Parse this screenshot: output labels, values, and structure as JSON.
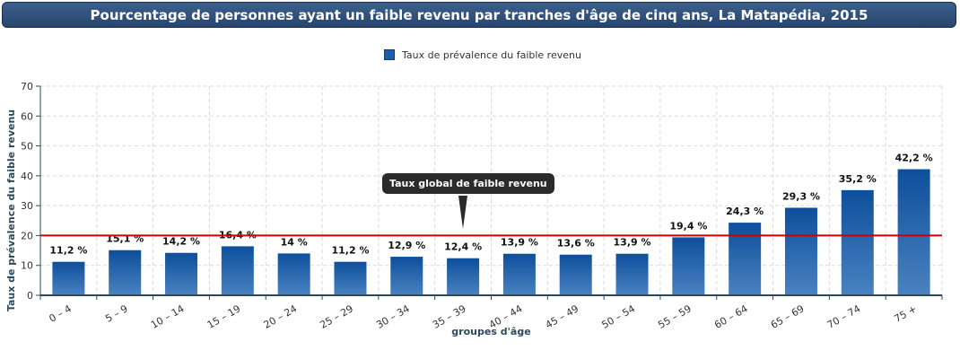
{
  "header": {
    "title": "Pourcentage de personnes ayant un faible revenu par tranches d'âge de cinq ans, La Matapédia, 2015"
  },
  "legend": {
    "series_label": "Taux de prévalence du faible revenu"
  },
  "annotation": {
    "reference_label": "Taux global de faible revenu"
  },
  "colors": {
    "bar_top": "#0d4f9c",
    "bar_bottom": "#4a82c0",
    "reference_line": "#cc0000",
    "axis": "#2c4a5a"
  },
  "chart_data": {
    "type": "bar",
    "title": "Pourcentage de personnes ayant un faible revenu par tranches d'âge de cinq ans, La Matapédia, 2015",
    "xlabel": "groupes d'âge",
    "ylabel": "Taux de prévalence du faible revenu",
    "ylim": [
      0,
      70
    ],
    "yticks": [
      0,
      10,
      20,
      30,
      40,
      50,
      60,
      70
    ],
    "grid": true,
    "legend_position": "top-center",
    "categories": [
      "0 – 4",
      "5 – 9",
      "10 – 14",
      "15 – 19",
      "20 – 24",
      "25 – 29",
      "30 – 34",
      "35 – 39",
      "40 – 44",
      "45 – 49",
      "50 – 54",
      "55 – 59",
      "60 – 64",
      "65 – 69",
      "70 – 74",
      "75 +"
    ],
    "series": [
      {
        "name": "Taux de prévalence du faible revenu",
        "values": [
          11.2,
          15.1,
          14.2,
          16.4,
          14,
          11.2,
          12.9,
          12.4,
          13.9,
          13.6,
          13.9,
          19.4,
          24.3,
          29.3,
          35.2,
          42.2
        ],
        "labels": [
          "11,2 %",
          "15,1 %",
          "14,2 %",
          "16,4 %",
          "14 %",
          "11,2 %",
          "12,9 %",
          "12,4 %",
          "13,9 %",
          "13,6 %",
          "13,9 %",
          "19,4 %",
          "24,3 %",
          "29,3 %",
          "35,2 %",
          "42,2 %"
        ]
      }
    ],
    "reference_line": {
      "value": 20,
      "label": "Taux global de faible revenu"
    }
  }
}
